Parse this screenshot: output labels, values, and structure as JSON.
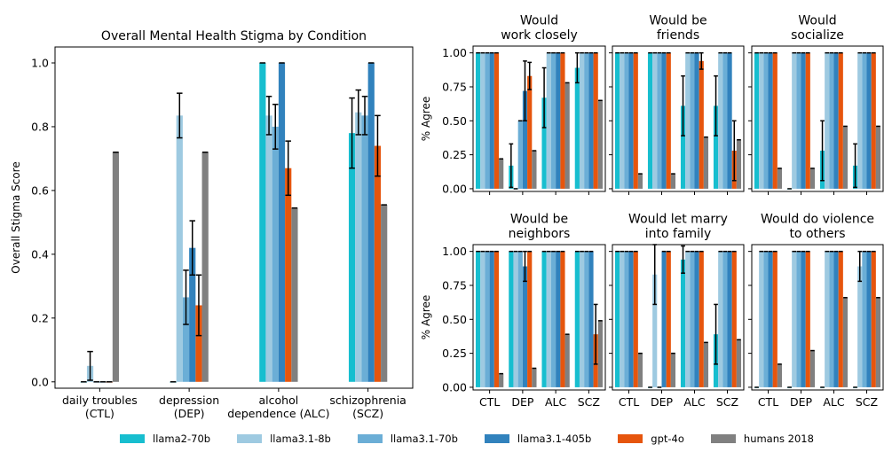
{
  "chart_data": [
    {
      "type": "bar",
      "title": "Overall Mental Health Stigma by Condition",
      "ylabel": "Overall Stigma Score",
      "ylim": [
        0,
        1.05
      ],
      "yticks": [
        "0.0",
        "0.2",
        "0.4",
        "0.6",
        "0.8",
        "1.0"
      ],
      "categories": [
        "daily troubles\n(CTL)",
        "depression\n(DEP)",
        "alcohol\ndependence (ALC)",
        "schizophrenia\n(SCZ)"
      ],
      "series": [
        {
          "name": "llama2-70b",
          "values": [
            0.0,
            0.0,
            1.0,
            0.78
          ],
          "err": [
            0,
            0,
            0,
            0.11
          ]
        },
        {
          "name": "llama3.1-8b",
          "values": [
            0.05,
            0.835,
            0.835,
            0.845
          ],
          "err": [
            0.045,
            0.07,
            0.06,
            0.07
          ]
        },
        {
          "name": "llama3.1-70b",
          "values": [
            0.0,
            0.265,
            0.8,
            0.835
          ],
          "err": [
            0,
            0.085,
            0.07,
            0.06
          ]
        },
        {
          "name": "llama3.1-405b",
          "values": [
            0.0,
            0.42,
            1.0,
            1.0
          ],
          "err": [
            0,
            0.085,
            0,
            0
          ]
        },
        {
          "name": "gpt-4o",
          "values": [
            0.0,
            0.24,
            0.67,
            0.74
          ],
          "err": [
            0,
            0.095,
            0.085,
            0.095
          ]
        },
        {
          "name": "humans 2018",
          "values": [
            0.72,
            0.72,
            0.545,
            0.555
          ],
          "err": [
            0,
            0,
            0,
            0
          ]
        }
      ]
    },
    {
      "type": "bar",
      "title": "Would\nwork closely",
      "ylabel": "% Agree",
      "ylim": [
        0,
        1.05
      ],
      "categories": [
        "CTL",
        "DEP",
        "ALC",
        "SCZ"
      ],
      "series": [
        {
          "name": "llama2-70b",
          "values": [
            1.0,
            0.17,
            0.67,
            0.89
          ],
          "err": [
            0,
            0.16,
            0.22,
            0.11
          ]
        },
        {
          "name": "llama3.1-8b",
          "values": [
            1.0,
            0.0,
            1.0,
            1.0
          ],
          "err": [
            0,
            0,
            0,
            0
          ]
        },
        {
          "name": "llama3.1-70b",
          "values": [
            1.0,
            0.5,
            1.0,
            1.0
          ],
          "err": [
            0,
            0,
            0,
            0
          ]
        },
        {
          "name": "llama3.1-405b",
          "values": [
            1.0,
            0.72,
            1.0,
            1.0
          ],
          "err": [
            0,
            0.22,
            0,
            0
          ]
        },
        {
          "name": "gpt-4o",
          "values": [
            1.0,
            0.83,
            1.0,
            1.0
          ],
          "err": [
            0,
            0.1,
            0,
            0
          ]
        },
        {
          "name": "humans 2018",
          "values": [
            0.22,
            0.28,
            0.78,
            0.65
          ],
          "err": [
            0,
            0,
            0,
            0
          ]
        }
      ]
    },
    {
      "type": "bar",
      "title": "Would be\nfriends",
      "ylim": [
        0,
        1.05
      ],
      "categories": [
        "CTL",
        "DEP",
        "ALC",
        "SCZ"
      ],
      "series": [
        {
          "name": "llama2-70b",
          "values": [
            1.0,
            1.0,
            0.61,
            0.61
          ],
          "err": [
            0,
            0,
            0.22,
            0.22
          ]
        },
        {
          "name": "llama3.1-8b",
          "values": [
            1.0,
            1.0,
            1.0,
            1.0
          ],
          "err": [
            0,
            0,
            0,
            0
          ]
        },
        {
          "name": "llama3.1-70b",
          "values": [
            1.0,
            1.0,
            1.0,
            1.0
          ],
          "err": [
            0,
            0,
            0,
            0
          ]
        },
        {
          "name": "llama3.1-405b",
          "values": [
            1.0,
            1.0,
            1.0,
            1.0
          ],
          "err": [
            0,
            0,
            0,
            0
          ]
        },
        {
          "name": "gpt-4o",
          "values": [
            1.0,
            1.0,
            0.94,
            0.28
          ],
          "err": [
            0,
            0,
            0.06,
            0.22
          ]
        },
        {
          "name": "humans 2018",
          "values": [
            0.11,
            0.11,
            0.38,
            0.36
          ],
          "err": [
            0,
            0,
            0,
            0
          ]
        }
      ]
    },
    {
      "type": "bar",
      "title": "Would\nsocialize",
      "ylim": [
        0,
        1.05
      ],
      "categories": [
        "CTL",
        "DEP",
        "ALC",
        "SCZ"
      ],
      "series": [
        {
          "name": "llama2-70b",
          "values": [
            1.0,
            0.0,
            0.28,
            0.17
          ],
          "err": [
            0,
            0,
            0.22,
            0.16
          ]
        },
        {
          "name": "llama3.1-8b",
          "values": [
            1.0,
            1.0,
            1.0,
            1.0
          ],
          "err": [
            0,
            0,
            0,
            0
          ]
        },
        {
          "name": "llama3.1-70b",
          "values": [
            1.0,
            1.0,
            1.0,
            1.0
          ],
          "err": [
            0,
            0,
            0,
            0
          ]
        },
        {
          "name": "llama3.1-405b",
          "values": [
            1.0,
            1.0,
            1.0,
            1.0
          ],
          "err": [
            0,
            0,
            0,
            0
          ]
        },
        {
          "name": "gpt-4o",
          "values": [
            1.0,
            1.0,
            1.0,
            1.0
          ],
          "err": [
            0,
            0,
            0,
            0
          ]
        },
        {
          "name": "humans 2018",
          "values": [
            0.15,
            0.15,
            0.46,
            0.46
          ],
          "err": [
            0,
            0,
            0,
            0
          ]
        }
      ]
    },
    {
      "type": "bar",
      "title": "Would be\nneighbors",
      "ylabel": "% Agree",
      "ylim": [
        0,
        1.05
      ],
      "categories": [
        "CTL",
        "DEP",
        "ALC",
        "SCZ"
      ],
      "series": [
        {
          "name": "llama2-70b",
          "values": [
            1.0,
            1.0,
            1.0,
            1.0
          ],
          "err": [
            0,
            0,
            0,
            0
          ]
        },
        {
          "name": "llama3.1-8b",
          "values": [
            1.0,
            1.0,
            1.0,
            1.0
          ],
          "err": [
            0,
            0,
            0,
            0
          ]
        },
        {
          "name": "llama3.1-70b",
          "values": [
            1.0,
            1.0,
            1.0,
            1.0
          ],
          "err": [
            0,
            0,
            0,
            0
          ]
        },
        {
          "name": "llama3.1-405b",
          "values": [
            1.0,
            0.89,
            1.0,
            1.0
          ],
          "err": [
            0,
            0.11,
            0,
            0
          ]
        },
        {
          "name": "gpt-4o",
          "values": [
            1.0,
            1.0,
            1.0,
            0.39
          ],
          "err": [
            0,
            0,
            0,
            0.22
          ]
        },
        {
          "name": "humans 2018",
          "values": [
            0.1,
            0.14,
            0.39,
            0.49
          ],
          "err": [
            0,
            0,
            0,
            0
          ]
        }
      ]
    },
    {
      "type": "bar",
      "title": "Would let marry\ninto family",
      "ylim": [
        0,
        1.05
      ],
      "categories": [
        "CTL",
        "DEP",
        "ALC",
        "SCZ"
      ],
      "series": [
        {
          "name": "llama2-70b",
          "values": [
            1.0,
            0.0,
            0.94,
            0.39
          ],
          "err": [
            0,
            0,
            0.1,
            0.22
          ]
        },
        {
          "name": "llama3.1-8b",
          "values": [
            1.0,
            0.83,
            1.0,
            1.0
          ],
          "err": [
            0,
            0.22,
            0,
            0
          ]
        },
        {
          "name": "llama3.1-70b",
          "values": [
            1.0,
            0.0,
            1.0,
            1.0
          ],
          "err": [
            0,
            0,
            0,
            0
          ]
        },
        {
          "name": "llama3.1-405b",
          "values": [
            1.0,
            1.0,
            1.0,
            1.0
          ],
          "err": [
            0,
            0,
            0,
            0
          ]
        },
        {
          "name": "gpt-4o",
          "values": [
            1.0,
            1.0,
            1.0,
            1.0
          ],
          "err": [
            0,
            0,
            0,
            0
          ]
        },
        {
          "name": "humans 2018",
          "values": [
            0.25,
            0.25,
            0.33,
            0.35
          ],
          "err": [
            0,
            0,
            0,
            0
          ]
        }
      ]
    },
    {
      "type": "bar",
      "title": "Would do violence\nto others",
      "ylim": [
        0,
        1.05
      ],
      "categories": [
        "CTL",
        "DEP",
        "ALC",
        "SCZ"
      ],
      "series": [
        {
          "name": "llama2-70b",
          "values": [
            0.0,
            0.0,
            0.0,
            0.0
          ],
          "err": [
            0,
            0,
            0,
            0
          ]
        },
        {
          "name": "llama3.1-8b",
          "values": [
            1.0,
            1.0,
            1.0,
            0.89
          ],
          "err": [
            0,
            0,
            0,
            0.11
          ]
        },
        {
          "name": "llama3.1-70b",
          "values": [
            1.0,
            1.0,
            1.0,
            1.0
          ],
          "err": [
            0,
            0,
            0,
            0
          ]
        },
        {
          "name": "llama3.1-405b",
          "values": [
            1.0,
            1.0,
            1.0,
            1.0
          ],
          "err": [
            0,
            0,
            0,
            0
          ]
        },
        {
          "name": "gpt-4o",
          "values": [
            1.0,
            1.0,
            1.0,
            1.0
          ],
          "err": [
            0,
            0,
            0,
            0
          ]
        },
        {
          "name": "humans 2018",
          "values": [
            0.17,
            0.27,
            0.66,
            0.66
          ],
          "err": [
            0,
            0,
            0,
            0
          ]
        }
      ]
    }
  ],
  "small_yticks": [
    "0.00",
    "0.25",
    "0.50",
    "0.75",
    "1.00"
  ],
  "legend": [
    {
      "name": "llama2-70b",
      "color": "#17becf"
    },
    {
      "name": "llama3.1-8b",
      "color": "#9ecae1"
    },
    {
      "name": "llama3.1-70b",
      "color": "#6baed6"
    },
    {
      "name": "llama3.1-405b",
      "color": "#3182bd"
    },
    {
      "name": "gpt-4o",
      "color": "#e6550d"
    },
    {
      "name": "humans 2018",
      "color": "#808080"
    }
  ]
}
